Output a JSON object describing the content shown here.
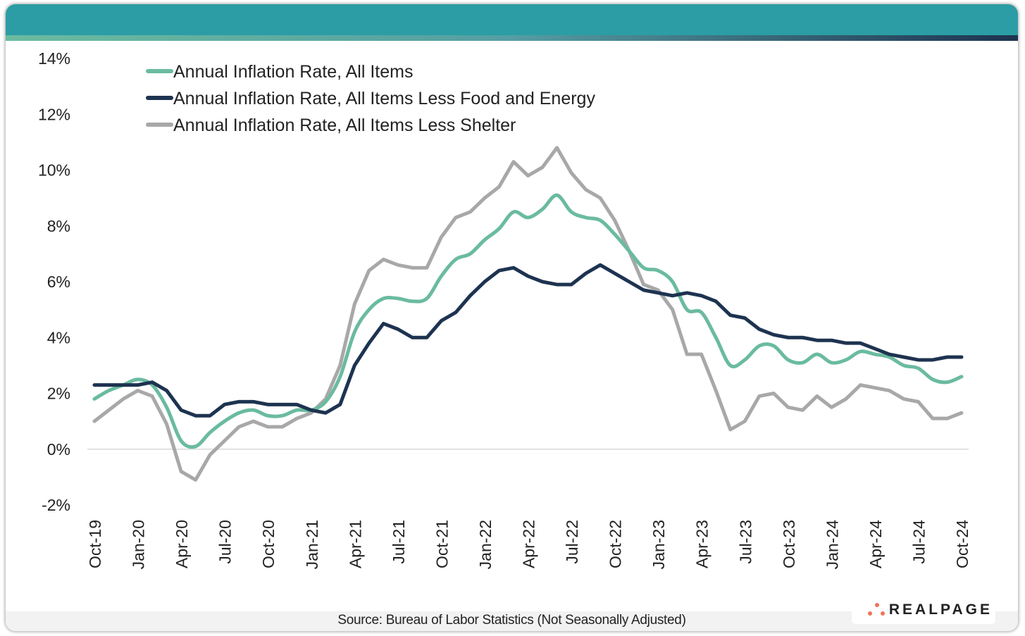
{
  "footer": {
    "source": "Source: Bureau of Labor Statistics (Not Seasonally Adjusted)"
  },
  "logo": {
    "text": "REALPAGE",
    "dot_color": "#f0735a"
  },
  "colors": {
    "header": "#2c9da5",
    "all_items": "#6abb9f",
    "core": "#1d3350",
    "less_shelter": "#a8a8a8",
    "gridline": "#d9d9d9"
  },
  "chart_data": {
    "type": "line",
    "title": "",
    "xlabel": "",
    "ylabel": "",
    "ylim": [
      -2,
      14
    ],
    "yticks": [
      -2,
      0,
      2,
      4,
      6,
      8,
      10,
      12,
      14
    ],
    "ytick_labels": [
      "-2%",
      "0%",
      "2%",
      "4%",
      "6%",
      "8%",
      "10%",
      "12%",
      "14%"
    ],
    "xtick_labels": [
      "Oct-19",
      "Jan-20",
      "Apr-20",
      "Jul-20",
      "Oct-20",
      "Jan-21",
      "Apr-21",
      "Jul-21",
      "Oct-21",
      "Jan-22",
      "Apr-22",
      "Jul-22",
      "Oct-22",
      "Jan-23",
      "Apr-23",
      "Jul-23",
      "Oct-23",
      "Jan-24",
      "Apr-24",
      "Jul-24",
      "Oct-24"
    ],
    "x": [
      "Oct-19",
      "Nov-19",
      "Dec-19",
      "Jan-20",
      "Feb-20",
      "Mar-20",
      "Apr-20",
      "May-20",
      "Jun-20",
      "Jul-20",
      "Aug-20",
      "Sep-20",
      "Oct-20",
      "Nov-20",
      "Dec-20",
      "Jan-21",
      "Feb-21",
      "Mar-21",
      "Apr-21",
      "May-21",
      "Jun-21",
      "Jul-21",
      "Aug-21",
      "Sep-21",
      "Oct-21",
      "Nov-21",
      "Dec-21",
      "Jan-22",
      "Feb-22",
      "Mar-22",
      "Apr-22",
      "May-22",
      "Jun-22",
      "Jul-22",
      "Aug-22",
      "Sep-22",
      "Oct-22",
      "Nov-22",
      "Dec-22",
      "Jan-23",
      "Feb-23",
      "Mar-23",
      "Apr-23",
      "May-23",
      "Jun-23",
      "Jul-23",
      "Aug-23",
      "Sep-23",
      "Oct-23",
      "Nov-23",
      "Dec-23",
      "Jan-24",
      "Feb-24",
      "Mar-24",
      "Apr-24",
      "May-24",
      "Jun-24",
      "Jul-24",
      "Aug-24",
      "Sep-24",
      "Oct-24"
    ],
    "legend_position": "top-left",
    "grid": false,
    "series": [
      {
        "name": "Annual Inflation Rate, All Items",
        "color": "#6abb9f",
        "smooth": true,
        "values": [
          1.8,
          2.1,
          2.3,
          2.5,
          2.3,
          1.5,
          0.3,
          0.1,
          0.6,
          1.0,
          1.3,
          1.4,
          1.2,
          1.2,
          1.4,
          1.4,
          1.7,
          2.6,
          4.2,
          5.0,
          5.4,
          5.4,
          5.3,
          5.4,
          6.2,
          6.8,
          7.0,
          7.5,
          7.9,
          8.5,
          8.3,
          8.6,
          9.1,
          8.5,
          8.3,
          8.2,
          7.7,
          7.1,
          6.5,
          6.4,
          6.0,
          5.0,
          4.9,
          4.0,
          3.0,
          3.2,
          3.7,
          3.7,
          3.2,
          3.1,
          3.4,
          3.1,
          3.2,
          3.5,
          3.4,
          3.3,
          3.0,
          2.9,
          2.5,
          2.4,
          2.6
        ]
      },
      {
        "name": "Annual Inflation Rate, All Items Less Food and Energy",
        "color": "#1d3350",
        "smooth": false,
        "values": [
          2.3,
          2.3,
          2.3,
          2.3,
          2.4,
          2.1,
          1.4,
          1.2,
          1.2,
          1.6,
          1.7,
          1.7,
          1.6,
          1.6,
          1.6,
          1.4,
          1.3,
          1.6,
          3.0,
          3.8,
          4.5,
          4.3,
          4.0,
          4.0,
          4.6,
          4.9,
          5.5,
          6.0,
          6.4,
          6.5,
          6.2,
          6.0,
          5.9,
          5.9,
          6.3,
          6.6,
          6.3,
          6.0,
          5.7,
          5.6,
          5.5,
          5.6,
          5.5,
          5.3,
          4.8,
          4.7,
          4.3,
          4.1,
          4.0,
          4.0,
          3.9,
          3.9,
          3.8,
          3.8,
          3.6,
          3.4,
          3.3,
          3.2,
          3.2,
          3.3,
          3.3
        ]
      },
      {
        "name": "Annual Inflation Rate, All Items Less Shelter",
        "color": "#a8a8a8",
        "smooth": false,
        "values": [
          1.0,
          1.4,
          1.8,
          2.1,
          1.9,
          0.9,
          -0.8,
          -1.1,
          -0.2,
          0.3,
          0.8,
          1.0,
          0.8,
          0.8,
          1.1,
          1.3,
          1.8,
          3.0,
          5.2,
          6.4,
          6.8,
          6.6,
          6.5,
          6.5,
          7.6,
          8.3,
          8.5,
          9.0,
          9.4,
          10.3,
          9.8,
          10.1,
          10.8,
          9.9,
          9.3,
          9.0,
          8.2,
          7.1,
          5.9,
          5.7,
          5.0,
          3.4,
          3.4,
          2.1,
          0.7,
          1.0,
          1.9,
          2.0,
          1.5,
          1.4,
          1.9,
          1.5,
          1.8,
          2.3,
          2.2,
          2.1,
          1.8,
          1.7,
          1.1,
          1.1,
          1.3
        ]
      }
    ]
  }
}
